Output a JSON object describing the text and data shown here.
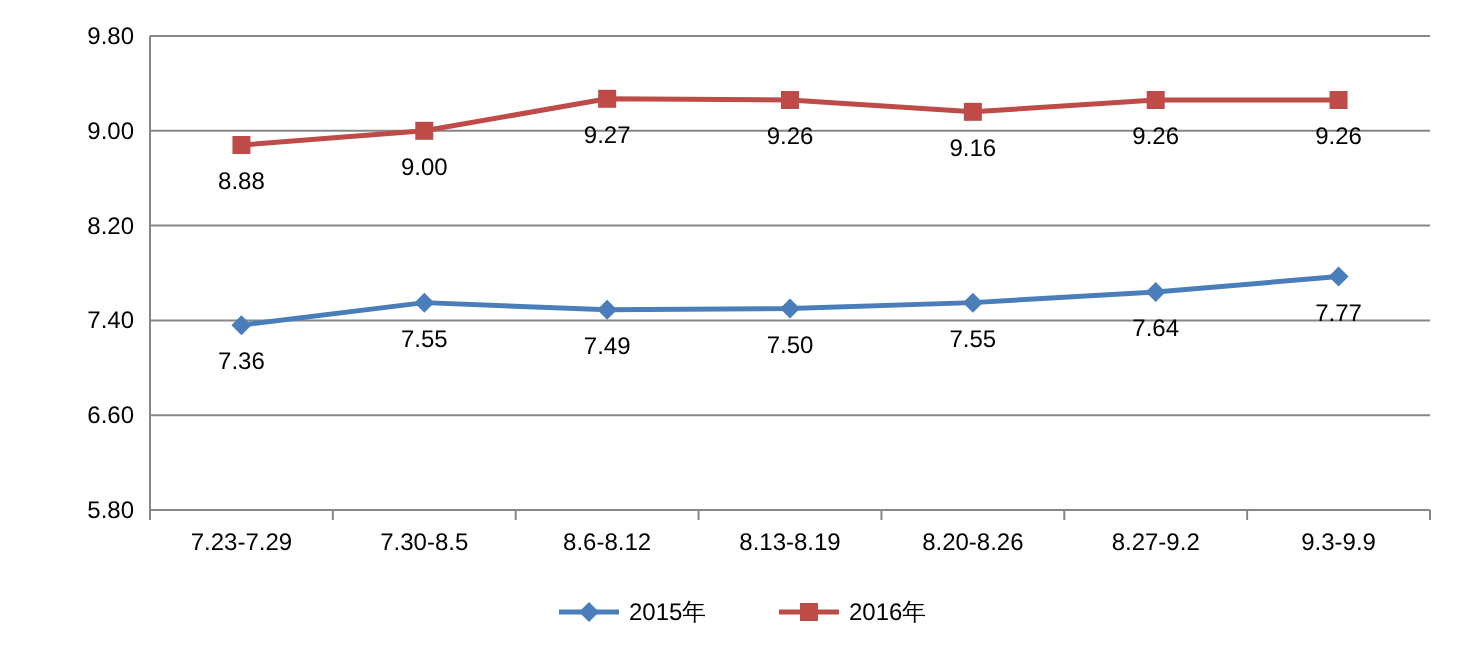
{
  "chart_data": {
    "type": "line",
    "categories": [
      "7.23-7.29",
      "7.30-8.5",
      "8.6-8.12",
      "8.13-8.19",
      "8.20-8.26",
      "8.27-9.2",
      "9.3-9.9"
    ],
    "series": [
      {
        "name": "2015年",
        "color": "#4a7ebb",
        "marker": "diamond",
        "values": [
          7.36,
          7.55,
          7.49,
          7.5,
          7.55,
          7.64,
          7.77
        ],
        "value_labels": [
          "7.36",
          "7.55",
          "7.49",
          "7.50",
          "7.55",
          "7.64",
          "7.77"
        ]
      },
      {
        "name": "2016年",
        "color": "#be4b48",
        "marker": "square",
        "values": [
          8.88,
          9.0,
          9.27,
          9.26,
          9.16,
          9.26,
          9.26
        ],
        "value_labels": [
          "8.88",
          "9.00",
          "9.27",
          "9.26",
          "9.16",
          "9.26",
          "9.26"
        ]
      }
    ],
    "ylim": [
      5.8,
      9.8
    ],
    "yticks": [
      {
        "value": 5.8,
        "label": "5.80"
      },
      {
        "value": 6.6,
        "label": "6.60"
      },
      {
        "value": 7.4,
        "label": "7.40"
      },
      {
        "value": 8.2,
        "label": "8.20"
      },
      {
        "value": 9.0,
        "label": "9.00"
      },
      {
        "value": 9.8,
        "label": "9.80"
      }
    ],
    "grid": "y",
    "legend": "bottom",
    "line_style": "solid"
  }
}
